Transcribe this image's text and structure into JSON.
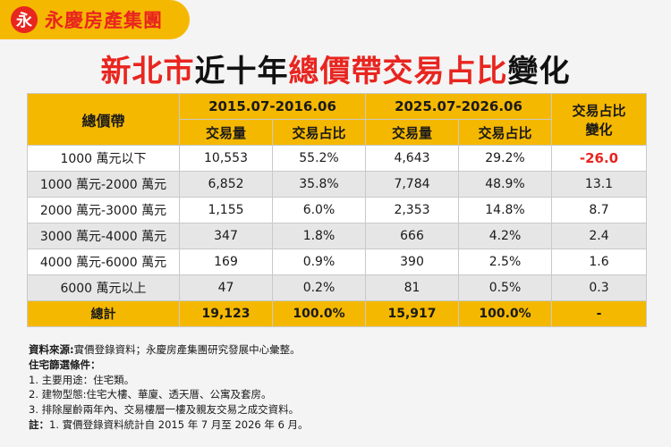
{
  "brand": {
    "name": "永慶房產集團",
    "mark": "永"
  },
  "title": {
    "part1": "新北市",
    "part2": "近十年",
    "part3": "總價帶交易占比",
    "part4": "變化"
  },
  "table": {
    "col_band": "總價帶",
    "period1": "2015.07-2016.06",
    "period2": "2025.07-2026.06",
    "change_header_line1": "交易占比",
    "change_header_line2": "變化",
    "sub_volume": "交易量",
    "sub_share": "交易占比",
    "rows": [
      {
        "band": "1000 萬元以下",
        "v1": "10,553",
        "s1": "55.2%",
        "v2": "4,643",
        "s2": "29.2%",
        "change": "-26.0"
      },
      {
        "band": "1000 萬元-2000 萬元",
        "v1": "6,852",
        "s1": "35.8%",
        "v2": "7,784",
        "s2": "48.9%",
        "change": "13.1"
      },
      {
        "band": "2000 萬元-3000 萬元",
        "v1": "1,155",
        "s1": "6.0%",
        "v2": "2,353",
        "s2": "14.8%",
        "change": "8.7"
      },
      {
        "band": "3000 萬元-4000 萬元",
        "v1": "347",
        "s1": "1.8%",
        "v2": "666",
        "s2": "4.2%",
        "change": "2.4"
      },
      {
        "band": "4000 萬元-6000 萬元",
        "v1": "169",
        "s1": "0.9%",
        "v2": "390",
        "s2": "2.5%",
        "change": "1.6"
      },
      {
        "band": "6000 萬元以上",
        "v1": "47",
        "s1": "0.2%",
        "v2": "81",
        "s2": "0.5%",
        "change": "0.3"
      }
    ],
    "total": {
      "label": "總計",
      "v1": "19,123",
      "s1": "100.0%",
      "v2": "15,917",
      "s2": "100.0%",
      "change": "-"
    }
  },
  "notes": {
    "source_label": "資料來源:",
    "source_text": "實價登錄資料；永慶房產集團研究發展中心彙整。",
    "filter_label": "住宅篩選條件：",
    "items": [
      "1. 主要用途：住宅類。",
      "2. 建物型態:住宅大樓、華廈、透天厝、公寓及套房。",
      "3. 排除屋齡兩年內、交易樓層一樓及親友交易之成交資料。"
    ],
    "remark_label": "註：",
    "remark_text": "1. 實價登錄資料統計自 2015 年 7 月至 2026 年 6 月。"
  },
  "colors": {
    "accent": "#f5b800",
    "brand_red": "#e8251f",
    "row_alt": "#e6e6e6"
  }
}
